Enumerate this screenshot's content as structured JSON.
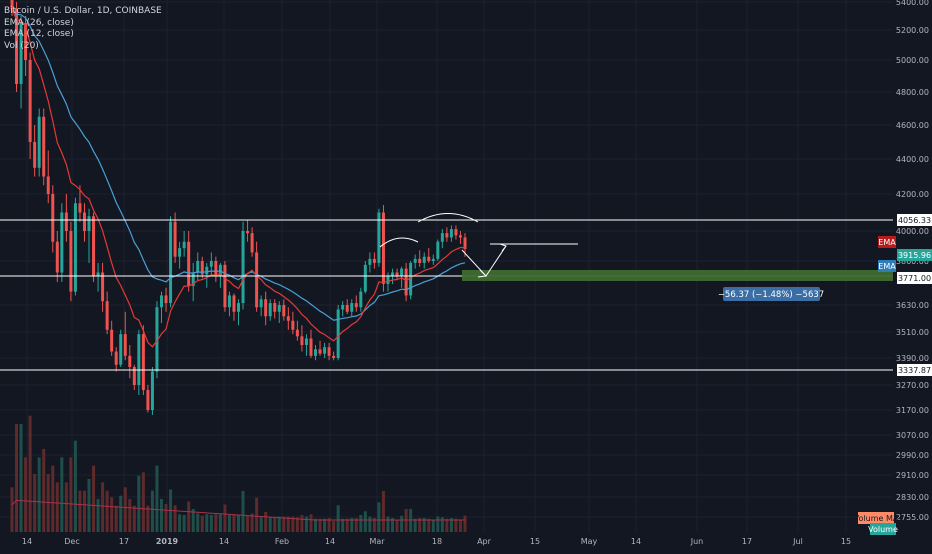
{
  "legend": {
    "symbol": "Bitcoin / U.S. Dollar, 1D, COINBASE",
    "ema26": "EMA (26, close)",
    "ema12": "EMA (12, close)",
    "vol": "Vol (20)"
  },
  "colors": {
    "background": "#131722",
    "grid": "#1e2230",
    "axis_text": "#b2b5be",
    "up": "#26a69a",
    "down": "#ef5350",
    "ema26": "#4a9fd5",
    "ema12": "#e53935",
    "vol_up": "#1f4f4a",
    "vol_down": "#5e2a2b",
    "vol_ma": "#a8334a",
    "level_line": "#ffffff",
    "target_box": "#3e6b2f",
    "measure_bg": "#3a6ea5"
  },
  "price_scale": {
    "ticks": [
      "5400.00",
      "5200.00",
      "5000.00",
      "4800.00",
      "4600.00",
      "4400.00",
      "4200.00",
      "4000.00",
      "3860.00",
      "3630.00",
      "3510.00",
      "3390.00",
      "3270.00",
      "3170.00",
      "3070.00",
      "2990.00",
      "2910.00",
      "2830.00",
      "2755.00"
    ]
  },
  "time_scale": {
    "ticks": [
      "14",
      "Dec",
      "17",
      "2019",
      "14",
      "Feb",
      "14",
      "Mar",
      "18",
      "Apr",
      "15",
      "May",
      "14",
      "Jun",
      "17",
      "Jul",
      "15"
    ]
  },
  "price_labels": {
    "resistance": "4056.33",
    "ema_tag": "EMA",
    "last_price": "3915.96",
    "ema_tag2": "EMA",
    "support": "3771.00",
    "lower": "3337.87",
    "volume_ma": "Volume MA",
    "volume_tag": "Volume"
  },
  "measure": {
    "text": "−56.37 (−1.48%) −5637"
  },
  "chart_data": {
    "type": "candlestick",
    "title": "Bitcoin / U.S. Dollar, 1D, COINBASE",
    "series": [
      {
        "name": "EMA (26, close)",
        "values": []
      },
      {
        "name": "EMA (12, close)",
        "values": []
      },
      {
        "name": "Vol (20)",
        "values": []
      }
    ],
    "horizontal_levels": [
      4056.33,
      3771.0,
      3337.87
    ],
    "last_price": 3915.96,
    "candles_ohlc": [
      [
        5500,
        5520,
        5300,
        5350
      ],
      [
        5350,
        5400,
        4800,
        4850
      ],
      [
        4850,
        5300,
        4700,
        5250
      ],
      [
        5250,
        5300,
        4900,
        5000
      ],
      [
        5000,
        5050,
        4400,
        4500
      ],
      [
        4500,
        4600,
        4300,
        4350
      ],
      [
        4350,
        4700,
        4300,
        4650
      ],
      [
        4650,
        4700,
        4250,
        4300
      ],
      [
        4300,
        4450,
        4150,
        4200
      ],
      [
        4200,
        4250,
        3900,
        3950
      ],
      [
        3950,
        4000,
        3750,
        3800
      ],
      [
        3800,
        4150,
        3750,
        4100
      ],
      [
        4100,
        4200,
        3950,
        4000
      ],
      [
        4000,
        4050,
        3650,
        3700
      ],
      [
        3700,
        4180,
        3680,
        4150
      ],
      [
        4150,
        4250,
        4050,
        4100
      ],
      [
        4100,
        4150,
        3950,
        4000
      ],
      [
        4000,
        4120,
        3850,
        4080
      ],
      [
        4080,
        4100,
        3750,
        3780
      ],
      [
        3780,
        3850,
        3700,
        3800
      ],
      [
        3800,
        3850,
        3600,
        3650
      ],
      [
        3650,
        3700,
        3500,
        3520
      ],
      [
        3520,
        3560,
        3400,
        3420
      ],
      [
        3420,
        3440,
        3330,
        3360
      ],
      [
        3360,
        3520,
        3350,
        3500
      ],
      [
        3500,
        3600,
        3380,
        3400
      ],
      [
        3400,
        3450,
        3300,
        3350
      ],
      [
        3350,
        3360,
        3250,
        3270
      ],
      [
        3270,
        3520,
        3230,
        3500
      ],
      [
        3500,
        3540,
        3230,
        3250
      ],
      [
        3250,
        3270,
        3160,
        3170
      ],
      [
        3170,
        3350,
        3150,
        3330
      ],
      [
        3330,
        3650,
        3300,
        3620
      ],
      [
        3620,
        3700,
        3550,
        3680
      ],
      [
        3680,
        3720,
        3600,
        3640
      ],
      [
        3640,
        4080,
        3620,
        4050
      ],
      [
        4050,
        4100,
        3850,
        3880
      ],
      [
        3880,
        3950,
        3820,
        3920
      ],
      [
        3920,
        4000,
        3880,
        3950
      ],
      [
        3950,
        4000,
        3700,
        3730
      ],
      [
        3730,
        3850,
        3650,
        3800
      ],
      [
        3800,
        3900,
        3760,
        3860
      ],
      [
        3860,
        3880,
        3770,
        3790
      ],
      [
        3790,
        3850,
        3720,
        3830
      ],
      [
        3830,
        3900,
        3780,
        3860
      ],
      [
        3860,
        3880,
        3750,
        3780
      ],
      [
        3780,
        3850,
        3720,
        3840
      ],
      [
        3840,
        3860,
        3600,
        3620
      ],
      [
        3620,
        3700,
        3580,
        3680
      ],
      [
        3680,
        3690,
        3560,
        3600
      ],
      [
        3600,
        3660,
        3540,
        3640
      ],
      [
        3640,
        4050,
        3610,
        4000
      ],
      [
        4000,
        4060,
        3950,
        3990
      ],
      [
        3990,
        4020,
        3880,
        3900
      ],
      [
        3900,
        3950,
        3600,
        3620
      ],
      [
        3620,
        3680,
        3580,
        3660
      ],
      [
        3660,
        3700,
        3540,
        3580
      ],
      [
        3580,
        3660,
        3560,
        3640
      ],
      [
        3640,
        3660,
        3570,
        3600
      ],
      [
        3600,
        3650,
        3550,
        3630
      ],
      [
        3630,
        3660,
        3560,
        3580
      ],
      [
        3580,
        3620,
        3520,
        3560
      ],
      [
        3560,
        3600,
        3500,
        3520
      ],
      [
        3520,
        3560,
        3470,
        3490
      ],
      [
        3490,
        3540,
        3420,
        3450
      ],
      [
        3450,
        3500,
        3400,
        3480
      ],
      [
        3480,
        3520,
        3390,
        3400
      ],
      [
        3400,
        3450,
        3380,
        3430
      ],
      [
        3430,
        3470,
        3400,
        3410
      ],
      [
        3410,
        3460,
        3390,
        3440
      ],
      [
        3440,
        3460,
        3380,
        3400
      ],
      [
        3400,
        3420,
        3380,
        3390
      ],
      [
        3390,
        3630,
        3380,
        3610
      ],
      [
        3610,
        3650,
        3580,
        3630
      ],
      [
        3630,
        3660,
        3590,
        3600
      ],
      [
        3600,
        3660,
        3580,
        3640
      ],
      [
        3640,
        3680,
        3600,
        3620
      ],
      [
        3620,
        3720,
        3600,
        3700
      ],
      [
        3700,
        3860,
        3690,
        3840
      ],
      [
        3840,
        3900,
        3800,
        3870
      ],
      [
        3870,
        3900,
        3820,
        3850
      ],
      [
        3850,
        4120,
        3830,
        4100
      ],
      [
        4100,
        4140,
        3700,
        3740
      ],
      [
        3740,
        3800,
        3700,
        3780
      ],
      [
        3780,
        3820,
        3740,
        3800
      ],
      [
        3800,
        3820,
        3760,
        3780
      ],
      [
        3780,
        3830,
        3720,
        3820
      ],
      [
        3820,
        3850,
        3650,
        3680
      ],
      [
        3680,
        3860,
        3660,
        3850
      ],
      [
        3850,
        3890,
        3820,
        3870
      ],
      [
        3870,
        3910,
        3830,
        3850
      ],
      [
        3850,
        3900,
        3820,
        3880
      ],
      [
        3880,
        3920,
        3850,
        3860
      ],
      [
        3860,
        3890,
        3840,
        3870
      ],
      [
        3870,
        3960,
        3860,
        3950
      ],
      [
        3950,
        4010,
        3920,
        3990
      ],
      [
        3990,
        4020,
        3950,
        3970
      ],
      [
        3970,
        4030,
        3950,
        4010
      ],
      [
        4010,
        4030,
        3960,
        3980
      ],
      [
        3980,
        4000,
        3940,
        3970
      ],
      [
        3970,
        3990,
        3880,
        3916
      ]
    ],
    "volume_ma": [
      1,
      1,
      1,
      1,
      1,
      1,
      1,
      1,
      1,
      1,
      1,
      1,
      1,
      1,
      1,
      1
    ],
    "xlabel": "",
    "ylabel": "",
    "ylim": [
      2755,
      5400
    ],
    "grid": true
  }
}
